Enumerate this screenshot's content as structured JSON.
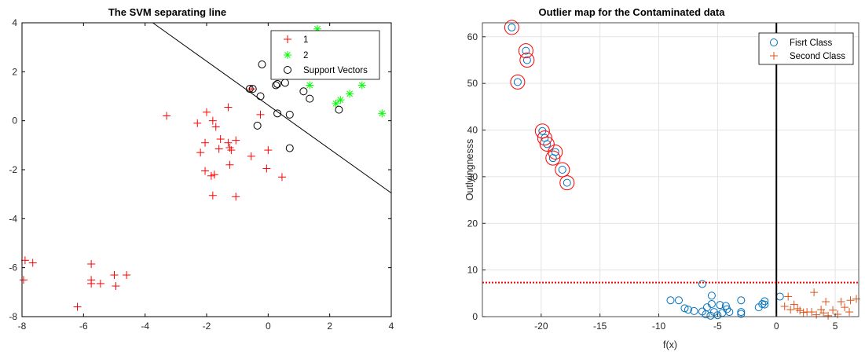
{
  "chart_data": [
    {
      "type": "scatter",
      "title": "The SVM separating line",
      "xlabel": "",
      "ylabel": "",
      "xlim": [
        -8,
        4
      ],
      "ylim": [
        -8,
        4
      ],
      "xticks": [
        -8,
        -6,
        -4,
        -2,
        0,
        2,
        4
      ],
      "yticks": [
        -8,
        -6,
        -4,
        -2,
        0,
        2,
        4
      ],
      "grid": false,
      "legend_position": "top-right",
      "colors": {
        "class1": "#ff0000",
        "class2": "#00ff00",
        "sv": "#000000",
        "line": "#000000"
      },
      "series": [
        {
          "name": "1",
          "marker": "plus",
          "points": [
            [
              -3.3,
              0.2
            ],
            [
              -2.3,
              -0.1
            ],
            [
              -2.0,
              0.35
            ],
            [
              -1.8,
              0.0
            ],
            [
              -1.7,
              -0.25
            ],
            [
              -1.3,
              0.55
            ],
            [
              -2.2,
              -1.3
            ],
            [
              -2.05,
              -0.9
            ],
            [
              -1.55,
              -0.75
            ],
            [
              -1.3,
              -0.9
            ],
            [
              -1.25,
              -1.1
            ],
            [
              -1.05,
              -0.8
            ],
            [
              -2.05,
              -2.05
            ],
            [
              -1.75,
              -2.2
            ],
            [
              -1.85,
              -2.25
            ],
            [
              -1.6,
              -1.15
            ],
            [
              -1.2,
              -1.2
            ],
            [
              -1.25,
              -1.8
            ],
            [
              -1.8,
              -3.05
            ],
            [
              -1.05,
              -3.1
            ],
            [
              -0.55,
              -1.45
            ],
            [
              0.0,
              -1.2
            ],
            [
              -0.05,
              -1.95
            ],
            [
              0.45,
              -2.3
            ],
            [
              -0.55,
              1.3
            ],
            [
              -0.25,
              0.25
            ],
            [
              -7.9,
              -5.7
            ],
            [
              -7.65,
              -5.8
            ],
            [
              -7.95,
              -6.5
            ],
            [
              -5.75,
              -5.85
            ],
            [
              -5.75,
              -6.5
            ],
            [
              -5.75,
              -6.65
            ],
            [
              -5.45,
              -6.65
            ],
            [
              -5.0,
              -6.3
            ],
            [
              -4.6,
              -6.3
            ],
            [
              -4.95,
              -6.75
            ],
            [
              -6.2,
              -7.6
            ]
          ]
        },
        {
          "name": "2",
          "marker": "star",
          "points": [
            [
              0.7,
              3.45
            ],
            [
              1.6,
              3.75
            ],
            [
              1.35,
              1.45
            ],
            [
              2.2,
              0.7
            ],
            [
              2.35,
              0.85
            ],
            [
              2.65,
              1.1
            ],
            [
              3.05,
              1.45
            ],
            [
              3.7,
              0.3
            ],
            [
              2.05,
              2.3
            ],
            [
              2.55,
              2.6
            ]
          ]
        },
        {
          "name": "Support Vectors",
          "marker": "circle",
          "points": [
            [
              -0.6,
              1.3
            ],
            [
              -0.5,
              1.3
            ],
            [
              -0.25,
              1.0
            ],
            [
              0.25,
              1.45
            ],
            [
              0.3,
              0.3
            ],
            [
              0.7,
              0.25
            ],
            [
              -0.35,
              -0.2
            ],
            [
              0.7,
              -1.12
            ],
            [
              -0.2,
              2.3
            ],
            [
              0.55,
              1.55
            ],
            [
              1.15,
              1.2
            ],
            [
              1.35,
              0.9
            ],
            [
              2.3,
              0.45
            ],
            [
              0.3,
              1.5
            ]
          ]
        }
      ],
      "separating_line": [
        [
          -3.75,
          4
        ],
        [
          4,
          -2.95
        ]
      ]
    },
    {
      "type": "scatter",
      "title": "Outlier map for the Contaminated data",
      "xlabel": "f(x)",
      "ylabel": "Outlyingnesss",
      "xlim": [
        -25,
        7
      ],
      "ylim": [
        0,
        63
      ],
      "xticks": [
        -20,
        -15,
        -10,
        -5,
        0,
        5
      ],
      "yticks": [
        0,
        10,
        20,
        30,
        40,
        50,
        60
      ],
      "grid": true,
      "legend_position": "top-right",
      "threshold": 7.3,
      "vertical_line": 0,
      "colors": {
        "first": "#0072bd",
        "second": "#d95319",
        "outlier_ring": "#ff0000",
        "threshold": "#ff0000",
        "vline": "#000000"
      },
      "series": [
        {
          "name": "Fisrt Class",
          "marker": "circle",
          "points": [
            [
              -22.5,
              62
            ],
            [
              -21.3,
              57
            ],
            [
              -21.2,
              55
            ],
            [
              -22.0,
              50.3
            ],
            [
              -19.9,
              39.8
            ],
            [
              -19.7,
              38.3
            ],
            [
              -19.5,
              37
            ],
            [
              -18.8,
              35.3
            ],
            [
              -19.0,
              34
            ],
            [
              -18.2,
              31.5
            ],
            [
              -17.8,
              28.7
            ],
            [
              -6.3,
              7
            ],
            [
              -9.0,
              3.5
            ],
            [
              -8.3,
              3.5
            ],
            [
              -7.8,
              1.8
            ],
            [
              -7.5,
              1.5
            ],
            [
              -7.0,
              1.2
            ],
            [
              -5.5,
              4.5
            ],
            [
              -5.5,
              2.7
            ],
            [
              -4.8,
              2.5
            ],
            [
              -4.3,
              2.3
            ],
            [
              -3.0,
              3.5
            ],
            [
              -5.9,
              2.0
            ],
            [
              -5.3,
              1.0
            ],
            [
              -4.6,
              0.8
            ],
            [
              -4.0,
              1.0
            ],
            [
              -3.0,
              1.0
            ],
            [
              -6.0,
              0.5
            ],
            [
              -5.0,
              0.3
            ],
            [
              -5.6,
              0.2
            ],
            [
              -3.0,
              0.6
            ],
            [
              -1.5,
              2.0
            ],
            [
              -1.2,
              2.7
            ],
            [
              -1.0,
              3.3
            ],
            [
              -1.0,
              2.6
            ],
            [
              0.3,
              4.3
            ],
            [
              -6.3,
              1.1
            ],
            [
              -4.2,
              1.6
            ]
          ]
        },
        {
          "name": "Second Class",
          "marker": "plus",
          "points": [
            [
              1.0,
              4.3
            ],
            [
              1.5,
              2.6
            ],
            [
              3.2,
              5.2
            ],
            [
              4.2,
              3.2
            ],
            [
              5.5,
              3.2
            ],
            [
              6.3,
              3.5
            ],
            [
              6.8,
              3.8
            ],
            [
              0.7,
              2.2
            ],
            [
              1.2,
              1.5
            ],
            [
              2.0,
              1.3
            ],
            [
              2.6,
              1.0
            ],
            [
              3.0,
              1.0
            ],
            [
              3.4,
              0.4
            ],
            [
              3.8,
              1.5
            ],
            [
              4.0,
              0.8
            ],
            [
              4.4,
              0.2
            ],
            [
              4.8,
              1.4
            ],
            [
              5.2,
              0.5
            ],
            [
              5.8,
              2.0
            ],
            [
              6.2,
              1.0
            ],
            [
              2.3,
              0.9
            ],
            [
              1.8,
              1.7
            ]
          ]
        }
      ],
      "outlier_rings": [
        [
          -22.5,
          62
        ],
        [
          -21.3,
          57
        ],
        [
          -21.2,
          55
        ],
        [
          -22.0,
          50.3
        ],
        [
          -19.9,
          39.8
        ],
        [
          -19.7,
          38.3
        ],
        [
          -19.5,
          37
        ],
        [
          -18.8,
          35.3
        ],
        [
          -19.0,
          34
        ],
        [
          -18.2,
          31.5
        ],
        [
          -17.8,
          28.7
        ]
      ]
    }
  ]
}
